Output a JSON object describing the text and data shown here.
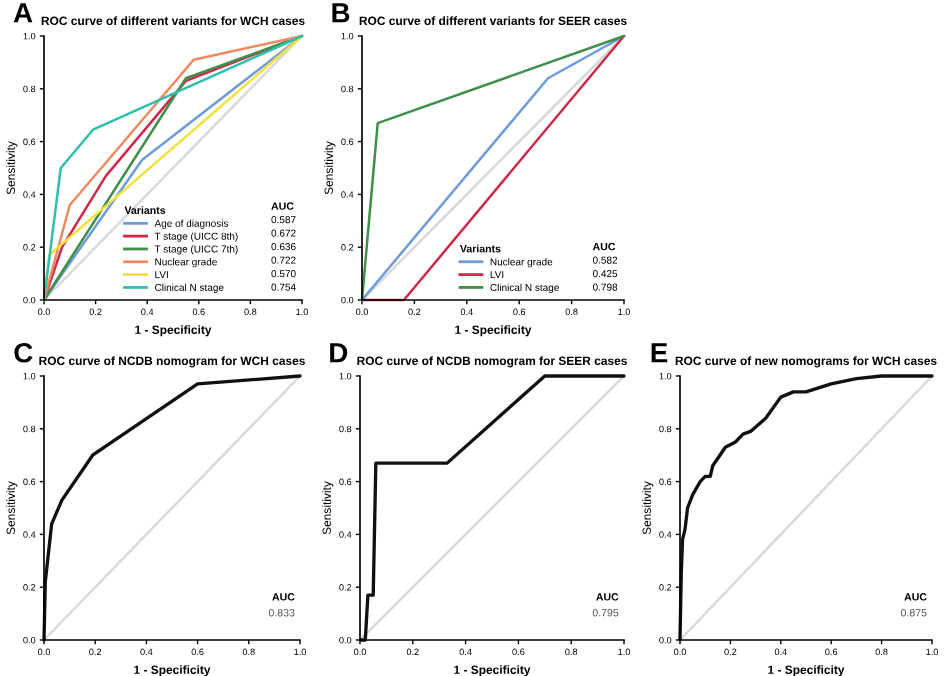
{
  "chart_data": [
    {
      "type": "line",
      "title": "ROC curve of different variants for WCH cases",
      "xlabel": "1 - Specificity",
      "ylabel": "Sensitivity",
      "legend_title": "Variants",
      "legend": "bottom right",
      "annotations": [
        "A",
        "AUC",
        "0.587",
        "0.672",
        "0.636",
        "0.722",
        "0.570",
        "0.754"
      ],
      "xlim": [
        0,
        1
      ],
      "ylim": [
        0,
        1
      ],
      "xticks": [
        {
          "value": 0,
          "label": "0.0"
        },
        {
          "value": 0.2,
          "label": "0.2"
        },
        {
          "value": 0.4,
          "label": "0.4"
        },
        {
          "value": 0.6,
          "label": "0.6"
        },
        {
          "value": 0.8,
          "label": "0.8"
        },
        {
          "value": 1,
          "label": "1.0"
        }
      ],
      "yticks": [
        {
          "value": 0,
          "label": "0.0"
        },
        {
          "value": 0.2,
          "label": "0.2"
        },
        {
          "value": 0.4,
          "label": "0.4"
        },
        {
          "value": 0.6,
          "label": "0.6"
        },
        {
          "value": 0.8,
          "label": "0.8"
        },
        {
          "value": 1,
          "label": "1.0"
        }
      ],
      "series": [
        {
          "color": "#d9d9d9",
          "x": [
            0,
            1
          ],
          "values": [
            0,
            1
          ]
        },
        {
          "name": "Age of diagnosis",
          "color": "#6f9bd8",
          "x": [
            0,
            0.38,
            1
          ],
          "values": [
            0,
            0.53,
            1
          ]
        },
        {
          "name": "T stage (UICC 8th)",
          "color": "#d0274a",
          "x": [
            0,
            0.07,
            0.24,
            0.55,
            1
          ],
          "values": [
            0,
            0.2,
            0.47,
            0.83,
            1
          ]
        },
        {
          "name": "T stage (UICC 7th)",
          "color": "#3f8f4a",
          "x": [
            0,
            0.55,
            1
          ],
          "values": [
            0,
            0.84,
            1
          ]
        },
        {
          "name": "Nuclear grade",
          "color": "#f08a5d",
          "x": [
            0,
            0.1,
            0.58,
            1
          ],
          "values": [
            0,
            0.36,
            0.91,
            1
          ]
        },
        {
          "name": "LVI",
          "color": "#f2e03c",
          "x": [
            0,
            0.02,
            1
          ],
          "values": [
            0,
            0.17,
            1
          ]
        },
        {
          "name": "Clinical N stage",
          "color": "#2fbfae",
          "x": [
            0,
            0.065,
            0.19,
            1
          ],
          "values": [
            0,
            0.5,
            0.645,
            1
          ]
        }
      ]
    },
    {
      "type": "line",
      "title": "ROC curve of different variants for SEER cases",
      "xlabel": "1 - Specificity",
      "ylabel": "Sensitivity",
      "legend_title": "Variants",
      "legend": "bottom right",
      "annotations": [
        "B",
        "AUC",
        "0.582",
        "0.425",
        "0.798"
      ],
      "xlim": [
        0,
        1
      ],
      "ylim": [
        0,
        1
      ],
      "xticks": [
        {
          "value": 0,
          "label": "0.0"
        },
        {
          "value": 0.2,
          "label": "0.2"
        },
        {
          "value": 0.4,
          "label": "0.4"
        },
        {
          "value": 0.6,
          "label": "0.6"
        },
        {
          "value": 0.8,
          "label": "0.8"
        },
        {
          "value": 1,
          "label": "1.0"
        }
      ],
      "yticks": [
        {
          "value": 0,
          "label": "0.0"
        },
        {
          "value": 0.2,
          "label": "0.2"
        },
        {
          "value": 0.4,
          "label": "0.4"
        },
        {
          "value": 0.6,
          "label": "0.6"
        },
        {
          "value": 0.8,
          "label": "0.8"
        },
        {
          "value": 1,
          "label": "1.0"
        }
      ],
      "series": [
        {
          "color": "#d9d9d9",
          "x": [
            0,
            1
          ],
          "values": [
            0,
            1
          ]
        },
        {
          "name": "Nuclear grade",
          "color": "#6f9bd8",
          "x": [
            0,
            0.71,
            1
          ],
          "values": [
            0,
            0.84,
            1
          ]
        },
        {
          "name": "LVI",
          "color": "#d0274a",
          "x": [
            0,
            0.16,
            1
          ],
          "values": [
            0,
            0,
            1
          ]
        },
        {
          "name": "Clinical N stage",
          "color": "#3f8f4a",
          "x": [
            0,
            0.06,
            1
          ],
          "values": [
            0,
            0.67,
            1
          ]
        }
      ]
    },
    {
      "type": "line",
      "title": "ROC curve of NCDB nomogram for WCH cases",
      "xlabel": "1 - Specificity",
      "ylabel": "Sensitivity",
      "annotations": [
        "C",
        "AUC",
        "0.833"
      ],
      "xlim": [
        0,
        1
      ],
      "ylim": [
        0,
        1
      ],
      "xticks": [
        {
          "value": 0,
          "label": "0.0"
        },
        {
          "value": 0.2,
          "label": "0.2"
        },
        {
          "value": 0.4,
          "label": "0.4"
        },
        {
          "value": 0.6,
          "label": "0.6"
        },
        {
          "value": 0.8,
          "label": "0.8"
        },
        {
          "value": 1,
          "label": "1.0"
        }
      ],
      "yticks": [
        {
          "value": 0,
          "label": "0.0"
        },
        {
          "value": 0.2,
          "label": "0.2"
        },
        {
          "value": 0.4,
          "label": "0.4"
        },
        {
          "value": 0.6,
          "label": "0.6"
        },
        {
          "value": 0.8,
          "label": "0.8"
        },
        {
          "value": 1,
          "label": "1.0"
        }
      ],
      "series": [
        {
          "color": "#d9d9d9",
          "x": [
            0,
            1
          ],
          "values": [
            0,
            1
          ]
        },
        {
          "color": "#111111",
          "x": [
            0,
            0.005,
            0.03,
            0.07,
            0.19,
            0.6,
            1
          ],
          "values": [
            0,
            0.22,
            0.44,
            0.53,
            0.7,
            0.97,
            1
          ]
        }
      ]
    },
    {
      "type": "line",
      "title": "ROC curve of NCDB nomogram for SEER cases",
      "xlabel": "1 - Specificity",
      "ylabel": "Sensitivity",
      "annotations": [
        "D",
        "AUC",
        "0.795"
      ],
      "xlim": [
        0,
        1
      ],
      "ylim": [
        0,
        1
      ],
      "xticks": [
        {
          "value": 0,
          "label": "0.0"
        },
        {
          "value": 0.2,
          "label": "0.2"
        },
        {
          "value": 0.4,
          "label": "0.4"
        },
        {
          "value": 0.6,
          "label": "0.6"
        },
        {
          "value": 0.8,
          "label": "0.8"
        },
        {
          "value": 1,
          "label": "1.0"
        }
      ],
      "yticks": [
        {
          "value": 0,
          "label": "0.0"
        },
        {
          "value": 0.2,
          "label": "0.2"
        },
        {
          "value": 0.4,
          "label": "0.4"
        },
        {
          "value": 0.6,
          "label": "0.6"
        },
        {
          "value": 0.8,
          "label": "0.8"
        },
        {
          "value": 1,
          "label": "1.0"
        }
      ],
      "series": [
        {
          "color": "#d9d9d9",
          "x": [
            0,
            1
          ],
          "values": [
            0,
            1
          ]
        },
        {
          "color": "#111111",
          "x": [
            0,
            0.02,
            0.03,
            0.05,
            0.06,
            0.33,
            0.7,
            1
          ],
          "values": [
            0,
            0,
            0.17,
            0.17,
            0.67,
            0.67,
            1,
            1
          ]
        }
      ]
    },
    {
      "type": "line",
      "title": "ROC curve of new nomograms for WCH cases",
      "xlabel": "1 - Specificity",
      "ylabel": "Sensitivity",
      "annotations": [
        "E",
        "AUC",
        "0.875"
      ],
      "xlim": [
        0,
        1
      ],
      "ylim": [
        0,
        1
      ],
      "xticks": [
        {
          "value": 0,
          "label": "0.0"
        },
        {
          "value": 0.2,
          "label": "0.2"
        },
        {
          "value": 0.4,
          "label": "0.4"
        },
        {
          "value": 0.6,
          "label": "0.6"
        },
        {
          "value": 0.8,
          "label": "0.8"
        },
        {
          "value": 1,
          "label": "1.0"
        }
      ],
      "yticks": [
        {
          "value": 0,
          "label": "0.0"
        },
        {
          "value": 0.2,
          "label": "0.2"
        },
        {
          "value": 0.4,
          "label": "0.4"
        },
        {
          "value": 0.6,
          "label": "0.6"
        },
        {
          "value": 0.8,
          "label": "0.8"
        },
        {
          "value": 1,
          "label": "1.0"
        }
      ],
      "series": [
        {
          "color": "#d9d9d9",
          "x": [
            0,
            1
          ],
          "values": [
            0,
            1
          ]
        },
        {
          "color": "#111111",
          "x": [
            0,
            0.005,
            0.01,
            0.02,
            0.03,
            0.05,
            0.08,
            0.1,
            0.12,
            0.13,
            0.18,
            0.22,
            0.25,
            0.28,
            0.34,
            0.4,
            0.45,
            0.5,
            0.6,
            0.7,
            0.8,
            1
          ],
          "values": [
            0,
            0.25,
            0.38,
            0.42,
            0.5,
            0.55,
            0.6,
            0.62,
            0.62,
            0.66,
            0.73,
            0.75,
            0.78,
            0.79,
            0.84,
            0.92,
            0.94,
            0.94,
            0.97,
            0.99,
            1,
            1
          ]
        }
      ]
    }
  ]
}
